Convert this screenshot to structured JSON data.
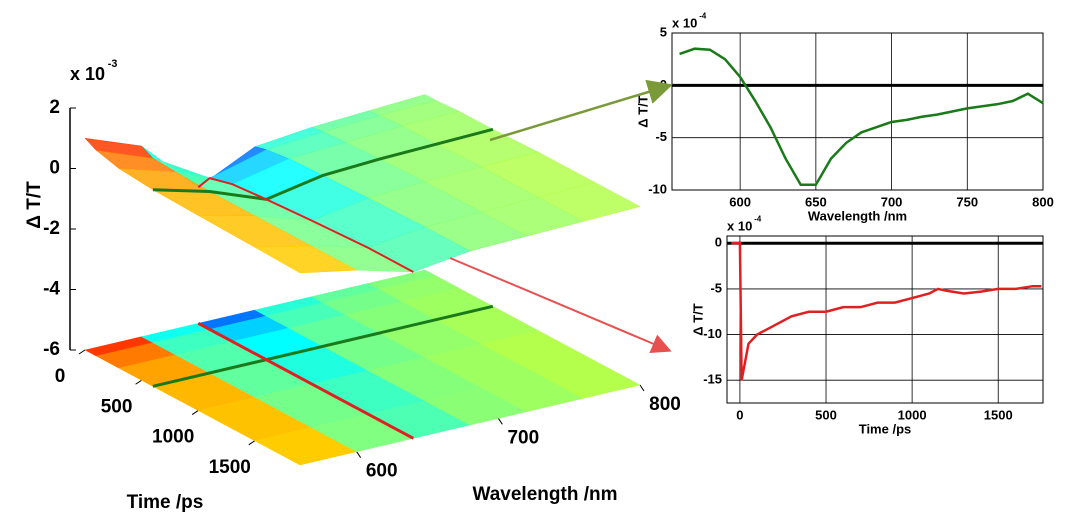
{
  "chart_data": [
    {
      "type": "surface",
      "exponent_base": "x 10",
      "exponent_power": "-3",
      "zlabel": "Δ T/T",
      "xlabel": "Time /ps",
      "ylabel": "Wavelength /nm",
      "times": [
        0,
        100,
        300,
        600,
        1000,
        1500,
        1900
      ],
      "wavelengths": [
        560,
        600,
        640,
        680,
        720,
        760,
        800
      ],
      "z": [
        [
          1.0,
          0.3,
          -1.5,
          -0.6,
          -0.4,
          -0.3,
          -0.2
        ],
        [
          0.8,
          0.1,
          -1.0,
          -0.5,
          -0.35,
          -0.25,
          -0.2
        ],
        [
          0.6,
          0.05,
          -0.8,
          -0.4,
          -0.3,
          -0.2,
          -0.15
        ],
        [
          0.5,
          0,
          -0.7,
          -0.35,
          -0.25,
          -0.2,
          -0.15
        ],
        [
          0.45,
          0,
          -0.6,
          -0.3,
          -0.2,
          -0.15,
          -0.1
        ],
        [
          0.4,
          0,
          -0.5,
          -0.25,
          -0.2,
          -0.15,
          -0.1
        ],
        [
          0.35,
          0,
          -0.5,
          -0.25,
          -0.2,
          -0.15,
          -0.1
        ]
      ],
      "tlim": [
        0,
        1900
      ],
      "wlim": [
        560,
        800
      ],
      "zlim": [
        -6,
        2
      ],
      "zticks": [
        2,
        0,
        -2,
        -4,
        -6
      ],
      "tticks": [
        0,
        500,
        1000,
        1500
      ],
      "wticks": [
        600,
        700,
        800
      ],
      "colormap": "jet"
    },
    {
      "type": "line",
      "exponent_base": "x 10",
      "exponent_power": "-4",
      "xlabel": "Wavelength /nm",
      "ylabel": "Δ T/T",
      "x": [
        560,
        570,
        580,
        590,
        600,
        610,
        620,
        630,
        640,
        650,
        660,
        670,
        680,
        690,
        700,
        710,
        720,
        730,
        740,
        750,
        760,
        770,
        780,
        790,
        800
      ],
      "series": [
        {
          "color": "#1a7a1a",
          "values": [
            3.0,
            3.5,
            3.4,
            2.5,
            0.8,
            -1.5,
            -4,
            -7,
            -9.5,
            -9.5,
            -7,
            -5.5,
            -4.5,
            -4,
            -3.5,
            -3.3,
            -3,
            -2.8,
            -2.5,
            -2.2,
            -2,
            -1.8,
            -1.5,
            -0.8,
            -1.7
          ]
        }
      ],
      "xlim": [
        555,
        800
      ],
      "ylim": [
        -10,
        5
      ],
      "xticks": [
        600,
        650,
        700,
        750,
        800
      ],
      "yticks": [
        5,
        0,
        -5,
        -10
      ],
      "grid": true,
      "zero_line": true
    },
    {
      "type": "line",
      "exponent_base": "x 10",
      "exponent_power": "-4",
      "xlabel": "Time /ps",
      "ylabel": "Δ T/T",
      "x": [
        -50,
        0,
        10,
        30,
        50,
        100,
        200,
        300,
        400,
        500,
        600,
        700,
        800,
        900,
        1000,
        1100,
        1150,
        1200,
        1300,
        1400,
        1500,
        1600,
        1700,
        1750
      ],
      "series": [
        {
          "color": "#e02020",
          "values": [
            0,
            0,
            -15,
            -13,
            -11,
            -10,
            -9,
            -8,
            -7.5,
            -7.5,
            -7,
            -7,
            -6.5,
            -6.5,
            -6,
            -5.5,
            -5,
            -5.2,
            -5.5,
            -5.3,
            -5,
            -5,
            -4.7,
            -4.7
          ]
        }
      ],
      "xlim": [
        -75,
        1760
      ],
      "ylim": [
        -17.5,
        0.8
      ],
      "xticks": [
        0,
        500,
        1000,
        1500
      ],
      "yticks": [
        0,
        -5,
        -10,
        -15
      ],
      "grid": true,
      "zero_line": true
    }
  ]
}
